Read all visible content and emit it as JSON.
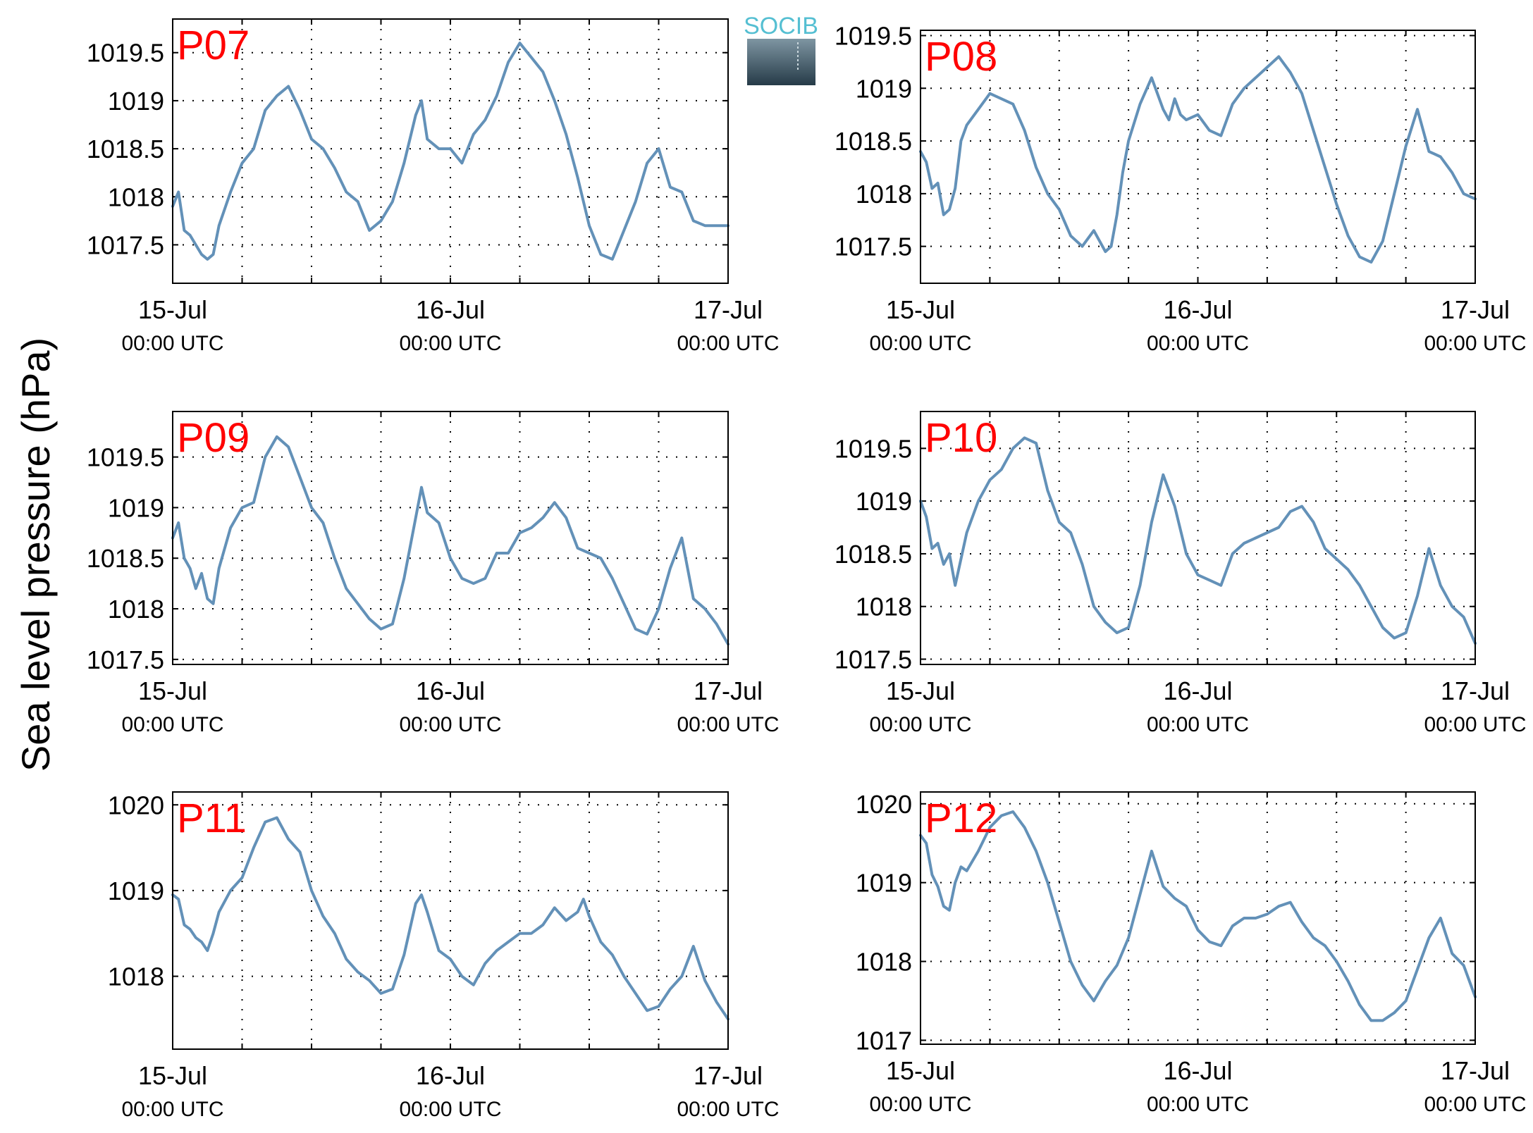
{
  "ylabel": "Sea level pressure (hPa)",
  "logo": {
    "text": "SOCIB",
    "colors": {
      "text": "#55bfd2",
      "top": "#7e95a2",
      "bottom": "#263b48"
    }
  },
  "colors": {
    "line": "#6391b8",
    "label": "#ff0000",
    "grid": "#000000",
    "axis": "#000000"
  },
  "xaxis": {
    "tick_labels": [
      {
        "date": "15-Jul",
        "time": "00:00 UTC"
      },
      {
        "date": "16-Jul",
        "time": "00:00 UTC"
      },
      {
        "date": "17-Jul",
        "time": "00:00 UTC"
      }
    ],
    "x_unit": "hours since 15-Jul 00:00 UTC",
    "xlim": [
      0,
      48
    ],
    "grid_every_hours": 6
  },
  "chart_data": [
    {
      "type": "line",
      "label": "P07",
      "ylim": [
        1017.1,
        1019.85
      ],
      "yticks": [
        "1017.5",
        "1018",
        "1018.5",
        "1019",
        "1019.5"
      ],
      "x": [
        0,
        0.5,
        1,
        1.5,
        2,
        2.5,
        3,
        3.5,
        4,
        5,
        6,
        7,
        8,
        9,
        10,
        11,
        12,
        13,
        14,
        15,
        16,
        17,
        18,
        18.5,
        19,
        20,
        21,
        21.5,
        22,
        23,
        24,
        25,
        26,
        27,
        28,
        29,
        30,
        31,
        32,
        33,
        34,
        35,
        36,
        37,
        38,
        39,
        40,
        41,
        42,
        43,
        44,
        45,
        46,
        47,
        48
      ],
      "y": [
        1017.9,
        1018.05,
        1017.65,
        1017.6,
        1017.5,
        1017.4,
        1017.35,
        1017.4,
        1017.7,
        1018.05,
        1018.35,
        1018.5,
        1018.9,
        1019.05,
        1019.15,
        1018.9,
        1018.6,
        1018.5,
        1018.3,
        1018.05,
        1017.95,
        1017.65,
        1017.75,
        1017.85,
        1017.95,
        1018.35,
        1018.85,
        1019.0,
        1018.6,
        1018.5,
        1018.5,
        1018.35,
        1018.65,
        1018.8,
        1019.05,
        1019.4,
        1019.6,
        1019.45,
        1019.3,
        1019.0,
        1018.65,
        1018.2,
        1017.7,
        1017.4,
        1017.35,
        1017.65,
        1017.95,
        1018.35,
        1018.5,
        1018.1,
        1018.05,
        1017.75,
        1017.7,
        1017.7,
        1017.7
      ]
    },
    {
      "type": "line",
      "label": "P08",
      "ylim": [
        1017.15,
        1019.55
      ],
      "yticks": [
        "1017.5",
        "1018",
        "1018.5",
        "1019",
        "1019.5"
      ],
      "x": [
        0,
        0.5,
        1,
        1.5,
        2,
        2.5,
        3,
        3.5,
        4,
        5,
        6,
        7,
        8,
        9,
        10,
        11,
        12,
        13,
        14,
        15,
        16,
        16.5,
        17,
        17.5,
        18,
        19,
        20,
        21,
        21.5,
        22,
        22.5,
        23,
        24,
        25,
        26,
        27,
        28,
        29,
        30,
        31,
        32,
        33,
        34,
        35,
        36,
        37,
        38,
        39,
        40,
        41,
        42,
        43,
        44,
        45,
        46,
        47,
        48
      ],
      "y": [
        1018.4,
        1018.3,
        1018.05,
        1018.1,
        1017.8,
        1017.85,
        1018.05,
        1018.5,
        1018.65,
        1018.8,
        1018.95,
        1018.9,
        1018.85,
        1018.6,
        1018.25,
        1018.0,
        1017.85,
        1017.6,
        1017.5,
        1017.65,
        1017.45,
        1017.5,
        1017.8,
        1018.2,
        1018.5,
        1018.85,
        1019.1,
        1018.8,
        1018.7,
        1018.9,
        1018.75,
        1018.7,
        1018.75,
        1018.6,
        1018.55,
        1018.85,
        1019.0,
        1019.1,
        1019.2,
        1019.3,
        1019.15,
        1018.95,
        1018.6,
        1018.25,
        1017.9,
        1017.6,
        1017.4,
        1017.35,
        1017.55,
        1018.0,
        1018.45,
        1018.8,
        1018.4,
        1018.35,
        1018.2,
        1018.0,
        1017.95
      ]
    },
    {
      "type": "line",
      "label": "P09",
      "ylim": [
        1017.45,
        1019.95
      ],
      "yticks": [
        "1017.5",
        "1018",
        "1018.5",
        "1019",
        "1019.5"
      ],
      "x": [
        0,
        0.5,
        1,
        1.5,
        2,
        2.5,
        3,
        3.5,
        4,
        5,
        6,
        7,
        8,
        9,
        10,
        11,
        12,
        13,
        14,
        15,
        16,
        17,
        18,
        19,
        20,
        21,
        21.5,
        22,
        22.5,
        23,
        24,
        25,
        26,
        27,
        28,
        29,
        30,
        31,
        32,
        33,
        34,
        35,
        36,
        37,
        38,
        39,
        40,
        41,
        42,
        43,
        44,
        45,
        46,
        47,
        48
      ],
      "y": [
        1018.7,
        1018.85,
        1018.5,
        1018.4,
        1018.2,
        1018.35,
        1018.1,
        1018.05,
        1018.4,
        1018.8,
        1019.0,
        1019.05,
        1019.5,
        1019.7,
        1019.6,
        1019.3,
        1019.0,
        1018.85,
        1018.5,
        1018.2,
        1018.05,
        1017.9,
        1017.8,
        1017.85,
        1018.3,
        1018.9,
        1019.2,
        1018.95,
        1018.9,
        1018.85,
        1018.5,
        1018.3,
        1018.25,
        1018.3,
        1018.55,
        1018.55,
        1018.75,
        1018.8,
        1018.9,
        1019.05,
        1018.9,
        1018.6,
        1018.55,
        1018.5,
        1018.3,
        1018.05,
        1017.8,
        1017.75,
        1018.0,
        1018.4,
        1018.7,
        1018.1,
        1018.0,
        1017.85,
        1017.65
      ]
    },
    {
      "type": "line",
      "label": "P10",
      "ylim": [
        1017.45,
        1019.85
      ],
      "yticks": [
        "1017.5",
        "1018",
        "1018.5",
        "1019",
        "1019.5"
      ],
      "x": [
        0,
        0.5,
        1,
        1.5,
        2,
        2.5,
        3,
        3.5,
        4,
        5,
        6,
        7,
        8,
        9,
        10,
        11,
        12,
        13,
        14,
        15,
        16,
        17,
        18,
        19,
        20,
        21,
        21.5,
        22,
        23,
        24,
        25,
        26,
        27,
        28,
        29,
        30,
        31,
        32,
        33,
        34,
        35,
        36,
        37,
        38,
        39,
        40,
        41,
        42,
        43,
        44,
        45,
        46,
        47,
        48
      ],
      "y": [
        1019.0,
        1018.85,
        1018.55,
        1018.6,
        1018.4,
        1018.5,
        1018.2,
        1018.45,
        1018.7,
        1019.0,
        1019.2,
        1019.3,
        1019.5,
        1019.6,
        1019.55,
        1019.1,
        1018.8,
        1018.7,
        1018.4,
        1018.0,
        1017.85,
        1017.75,
        1017.8,
        1018.2,
        1018.8,
        1019.25,
        1019.1,
        1018.95,
        1018.5,
        1018.3,
        1018.25,
        1018.2,
        1018.5,
        1018.6,
        1018.65,
        1018.7,
        1018.75,
        1018.9,
        1018.95,
        1018.8,
        1018.55,
        1018.45,
        1018.35,
        1018.2,
        1018.0,
        1017.8,
        1017.7,
        1017.75,
        1018.1,
        1018.55,
        1018.2,
        1018.0,
        1017.9,
        1017.65
      ]
    },
    {
      "type": "line",
      "label": "P11",
      "ylim": [
        1017.15,
        1020.15
      ],
      "yticks": [
        "1018",
        "1019",
        "1020"
      ],
      "x": [
        0,
        0.5,
        1,
        1.5,
        2,
        2.5,
        3,
        3.5,
        4,
        5,
        6,
        7,
        8,
        9,
        10,
        11,
        12,
        13,
        14,
        15,
        16,
        17,
        18,
        19,
        20,
        21,
        21.5,
        22,
        23,
        24,
        25,
        26,
        27,
        28,
        29,
        30,
        31,
        32,
        33,
        34,
        35,
        35.5,
        36,
        37,
        38,
        39,
        40,
        41,
        42,
        43,
        44,
        45,
        46,
        47,
        48
      ],
      "y": [
        1018.95,
        1018.9,
        1018.6,
        1018.55,
        1018.45,
        1018.4,
        1018.3,
        1018.5,
        1018.75,
        1019.0,
        1019.15,
        1019.5,
        1019.8,
        1019.85,
        1019.6,
        1019.45,
        1019.0,
        1018.7,
        1018.5,
        1018.2,
        1018.05,
        1017.95,
        1017.8,
        1017.85,
        1018.25,
        1018.85,
        1018.95,
        1018.75,
        1018.3,
        1018.2,
        1018.0,
        1017.9,
        1018.15,
        1018.3,
        1018.4,
        1018.5,
        1018.5,
        1018.6,
        1018.8,
        1018.65,
        1018.75,
        1018.9,
        1018.7,
        1018.4,
        1018.25,
        1018.0,
        1017.8,
        1017.6,
        1017.65,
        1017.85,
        1018.0,
        1018.35,
        1017.95,
        1017.7,
        1017.5
      ]
    },
    {
      "type": "line",
      "label": "P12",
      "ylim": [
        1016.95,
        1020.15
      ],
      "yticks": [
        "1017",
        "1018",
        "1019",
        "1020"
      ],
      "x": [
        0,
        0.5,
        1,
        1.5,
        2,
        2.5,
        3,
        3.5,
        4,
        5,
        6,
        7,
        8,
        9,
        10,
        11,
        12,
        13,
        14,
        15,
        16,
        17,
        18,
        19,
        20,
        21,
        22,
        23,
        24,
        25,
        26,
        27,
        28,
        29,
        30,
        31,
        32,
        33,
        34,
        35,
        36,
        37,
        38,
        39,
        40,
        41,
        42,
        43,
        44,
        45,
        46,
        47,
        48
      ],
      "y": [
        1019.6,
        1019.5,
        1019.1,
        1018.95,
        1018.7,
        1018.65,
        1019.0,
        1019.2,
        1019.15,
        1019.4,
        1019.7,
        1019.85,
        1019.9,
        1019.7,
        1019.4,
        1019.0,
        1018.5,
        1018.0,
        1017.7,
        1017.5,
        1017.75,
        1017.95,
        1018.3,
        1018.85,
        1019.4,
        1018.95,
        1018.8,
        1018.7,
        1018.4,
        1018.25,
        1018.2,
        1018.45,
        1018.55,
        1018.55,
        1018.6,
        1018.7,
        1018.75,
        1018.5,
        1018.3,
        1018.2,
        1018.0,
        1017.75,
        1017.45,
        1017.25,
        1017.25,
        1017.35,
        1017.5,
        1017.9,
        1018.3,
        1018.55,
        1018.1,
        1017.95,
        1017.55
      ]
    }
  ]
}
